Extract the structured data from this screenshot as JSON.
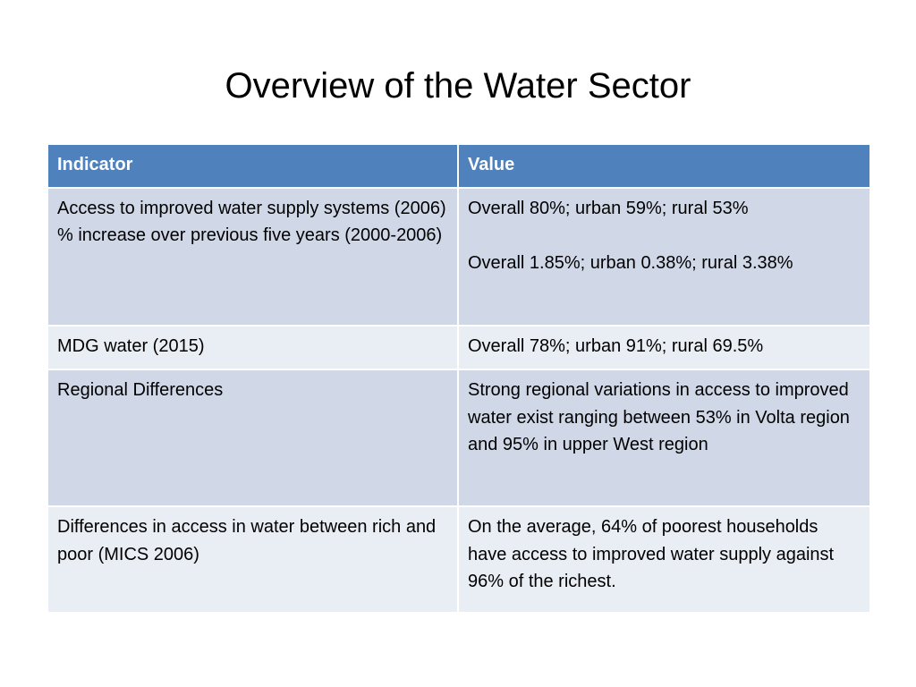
{
  "slide": {
    "title": "Overview of the Water Sector"
  },
  "table": {
    "headers": [
      "Indicator",
      "Value"
    ],
    "rows": [
      {
        "indicator_lines": [
          "Access to improved water supply systems (2006)",
          "% increase over previous five years (2000-2006)"
        ],
        "value_lines": [
          "Overall 80%; urban 59%; rural 53%",
          "Overall 1.85%; urban 0.38%; rural 3.38%"
        ]
      },
      {
        "indicator": "MDG water (2015)",
        "value": "Overall 78%; urban 91%; rural 69.5%"
      },
      {
        "indicator": "Regional Differences",
        "value": "Strong regional variations in access to improved water exist ranging between 53% in Volta region and 95% in upper West region"
      },
      {
        "indicator": "Differences in access in water between rich and poor (MICS 2006)",
        "value": "On the average, 64% of poorest households have access to improved water supply against 96% of the richest."
      }
    ]
  },
  "colors": {
    "header_bg": "#4f81bd",
    "row_odd_bg": "#d0d8e8",
    "row_even_bg": "#e9edf4"
  }
}
